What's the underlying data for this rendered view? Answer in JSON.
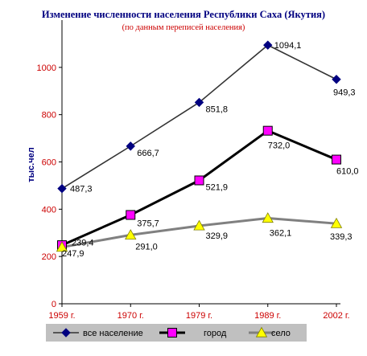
{
  "chart_data": {
    "type": "line",
    "title": "Изменение численности населения Республики Саха (Якутия)",
    "subtitle": "(по данным переписей  населения)",
    "ylabel": "тыс.чел",
    "xlabel": "",
    "categories": [
      "1959 г.",
      "1970 г.",
      "1979 г.",
      "1989 г.",
      "2002 г."
    ],
    "ylim": [
      0,
      1200
    ],
    "yticks": [
      0,
      200,
      400,
      600,
      800,
      1000
    ],
    "grid": false,
    "legend_position": "bottom",
    "series": [
      {
        "name": "все население",
        "values": [
          487.3,
          666.7,
          851.8,
          1094.1,
          949.3
        ],
        "labels": [
          "487,3",
          "666,7",
          "851,8",
          "1094,1",
          "949,3"
        ],
        "line_color": "#333333",
        "marker": "diamond",
        "marker_color": "#000080"
      },
      {
        "name": "город",
        "values": [
          247.9,
          375.7,
          521.9,
          732.0,
          610.0
        ],
        "labels": [
          "247,9",
          "375,7",
          "521,9",
          "732,0",
          "610,0"
        ],
        "line_color": "#000000",
        "marker": "square",
        "marker_color": "#FF00FF"
      },
      {
        "name": "село",
        "values": [
          239.4,
          291.0,
          329.9,
          362.1,
          339.3
        ],
        "labels": [
          "239,4",
          "291,0",
          "329,9",
          "362,1",
          "339,3"
        ],
        "line_color": "#808080",
        "marker": "triangle",
        "marker_color": "#FFFF00"
      }
    ],
    "colors": {
      "title": "#000080",
      "subtitle": "#CC0000",
      "axis_text": "#CC0000",
      "ylabel": "#000080",
      "legend_background": "#C0C0C0"
    }
  }
}
